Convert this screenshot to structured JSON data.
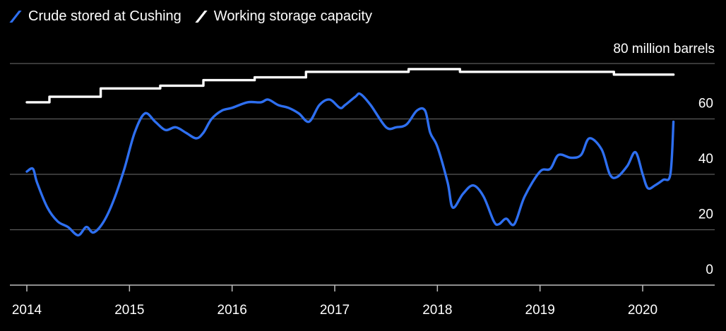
{
  "chart_data": {
    "type": "line",
    "legend": {
      "placement": "top-left"
    },
    "y_unit_label": "80 million barrels",
    "ylim": [
      0,
      80
    ],
    "y_ticks": [
      0,
      20,
      40,
      60,
      80
    ],
    "y_tick_labels": [
      "0",
      "20",
      "40",
      "60",
      ""
    ],
    "xlim": [
      2014,
      2020.75
    ],
    "x_ticks": [
      2014,
      2015,
      2016,
      2017,
      2018,
      2019,
      2020
    ],
    "x_tick_labels": [
      "2014",
      "2015",
      "2016",
      "2017",
      "2018",
      "2019",
      "2020"
    ],
    "grid": {
      "horizontal": true,
      "vertical": false
    },
    "series": [
      {
        "name": "Crude stored at Cushing",
        "color": "#2e6ff0",
        "line_style": "smooth",
        "x": [
          2014.0,
          2014.06,
          2014.1,
          2014.2,
          2014.3,
          2014.4,
          2014.5,
          2014.58,
          2014.65,
          2014.75,
          2014.85,
          2014.95,
          2015.05,
          2015.15,
          2015.25,
          2015.35,
          2015.45,
          2015.55,
          2015.65,
          2015.72,
          2015.8,
          2015.9,
          2016.0,
          2016.15,
          2016.28,
          2016.35,
          2016.45,
          2016.55,
          2016.65,
          2016.75,
          2016.85,
          2016.95,
          2017.05,
          2017.1,
          2017.2,
          2017.25,
          2017.35,
          2017.5,
          2017.6,
          2017.7,
          2017.8,
          2017.88,
          2017.93,
          2018.0,
          2018.1,
          2018.15,
          2018.25,
          2018.35,
          2018.45,
          2018.55,
          2018.6,
          2018.67,
          2018.75,
          2018.85,
          2019.0,
          2019.1,
          2019.18,
          2019.3,
          2019.4,
          2019.48,
          2019.6,
          2019.68,
          2019.75,
          2019.85,
          2019.93,
          2020.0,
          2020.05,
          2020.12,
          2020.2,
          2020.27,
          2020.3
        ],
        "y": [
          41,
          42,
          37,
          28,
          23,
          21,
          18,
          21,
          19,
          23,
          31,
          42,
          55,
          62,
          59,
          56,
          57,
          55,
          53,
          55,
          60,
          63,
          64,
          66,
          66,
          67,
          65,
          64,
          62,
          59,
          65,
          67,
          64,
          65,
          68,
          69,
          65,
          57,
          57,
          58,
          63,
          63,
          55,
          50,
          37,
          28,
          33,
          36,
          32,
          23,
          22,
          24,
          22,
          32,
          41,
          42,
          47,
          46,
          47,
          53,
          49,
          40,
          39,
          43,
          48,
          40,
          35,
          36,
          38,
          40,
          59
        ]
      },
      {
        "name": "Working storage capacity",
        "color": "#ffffff",
        "line_style": "step",
        "x": [
          2014.0,
          2014.22,
          2014.72,
          2015.3,
          2015.72,
          2016.22,
          2016.72,
          2017.22,
          2017.72,
          2018.22,
          2018.72,
          2019.22,
          2019.72,
          2020.3
        ],
        "y": [
          66,
          68,
          71,
          72,
          74,
          75,
          77,
          77,
          78,
          77,
          77,
          77,
          76,
          76
        ]
      }
    ]
  }
}
